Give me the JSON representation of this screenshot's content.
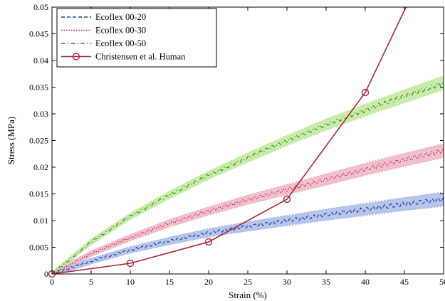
{
  "chart_data": {
    "type": "line",
    "title": "",
    "xlabel": "Strain (%)",
    "ylabel": "Stress (MPa)",
    "xlim": [
      0,
      50
    ],
    "ylim": [
      0,
      0.05
    ],
    "x_ticks": [
      "0",
      "5",
      "10",
      "15",
      "20",
      "25",
      "30",
      "35",
      "40",
      "45",
      "50"
    ],
    "y_ticks": [
      "0",
      "0.005",
      "0.01",
      "0.015",
      "0.02",
      "0.025",
      "0.03",
      "0.035",
      "0.04",
      "0.045",
      "0.05"
    ],
    "grid": false,
    "legend_position": "top-left",
    "series": [
      {
        "name": "Ecoflex 00-20",
        "color": "#1f3f99",
        "band_color": "#9fb3e6",
        "style": "dashed",
        "x": [
          0,
          5,
          10,
          15,
          20,
          25,
          30,
          35,
          40,
          45,
          50
        ],
        "y": [
          0,
          0.0024,
          0.0045,
          0.0062,
          0.0077,
          0.0089,
          0.01,
          0.0111,
          0.0121,
          0.0131,
          0.014
        ]
      },
      {
        "name": "Ecoflex 00-30",
        "color": "#a0203a",
        "band_color": "#f0a9bb",
        "style": "dotted",
        "x": [
          0,
          5,
          10,
          15,
          20,
          25,
          30,
          35,
          40,
          45,
          50
        ],
        "y": [
          0,
          0.0038,
          0.0068,
          0.0095,
          0.0118,
          0.0139,
          0.0158,
          0.0177,
          0.0196,
          0.0214,
          0.0231
        ]
      },
      {
        "name": "Ecoflex 00-50",
        "color": "#3d8a1a",
        "band_color": "#b7e68f",
        "style": "dashdot",
        "x": [
          0,
          5,
          10,
          15,
          20,
          25,
          30,
          35,
          40,
          45,
          50
        ],
        "y": [
          0,
          0.006,
          0.0108,
          0.0148,
          0.0185,
          0.0218,
          0.025,
          0.028,
          0.0307,
          0.0333,
          0.0358
        ]
      },
      {
        "name": "Christensen et al. Human",
        "color": "#b0243a",
        "style": "solid",
        "marker": "circle",
        "x": [
          0,
          10,
          20,
          30,
          40,
          45.2
        ],
        "y": [
          0,
          0.002,
          0.006,
          0.014,
          0.034,
          0.05
        ],
        "marker_count": 5
      }
    ]
  }
}
